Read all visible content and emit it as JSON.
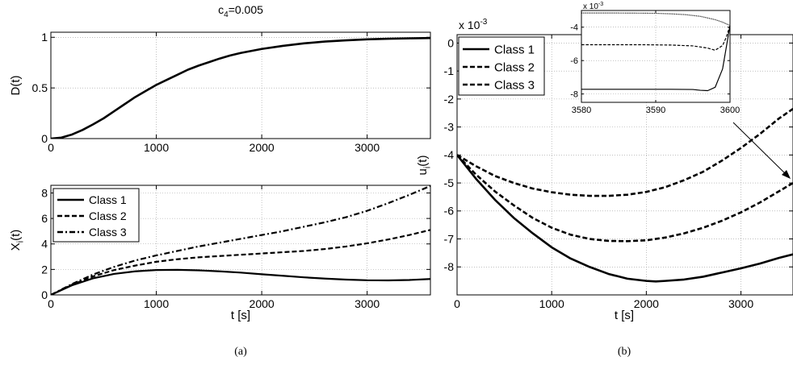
{
  "chart_data": [
    {
      "id": "top-left",
      "type": "line",
      "title_main": "c",
      "title_sub": "4",
      "title_rest": "=0.005",
      "ylabel": "D(t)",
      "xlim": [
        0,
        3600
      ],
      "ylim": [
        0,
        1.05
      ],
      "xticks": [
        0,
        1000,
        2000,
        3000
      ],
      "yticks": [
        0,
        0.5,
        1
      ],
      "ytick_labels": [
        "0",
        "0.5",
        "1"
      ],
      "grid": true,
      "series": [
        {
          "style": "solid",
          "x": [
            0,
            100,
            200,
            300,
            400,
            500,
            600,
            700,
            800,
            900,
            1000,
            1100,
            1200,
            1300,
            1400,
            1500,
            1600,
            1700,
            1800,
            1900,
            2000,
            2200,
            2400,
            2600,
            2800,
            3000,
            3200,
            3400,
            3600
          ],
          "y": [
            0,
            0.01,
            0.04,
            0.085,
            0.14,
            0.2,
            0.27,
            0.34,
            0.41,
            0.47,
            0.53,
            0.58,
            0.63,
            0.68,
            0.72,
            0.755,
            0.79,
            0.82,
            0.845,
            0.865,
            0.885,
            0.915,
            0.94,
            0.958,
            0.97,
            0.98,
            0.986,
            0.99,
            0.993
          ]
        }
      ]
    },
    {
      "id": "bottom-left",
      "type": "line",
      "ylabel_main": "X",
      "ylabel_sub": "i",
      "ylabel_rest": "(t)",
      "xlabel": "t [s]",
      "xlim": [
        0,
        3600
      ],
      "ylim": [
        0,
        8.6
      ],
      "xticks": [
        0,
        1000,
        2000,
        3000
      ],
      "yticks": [
        0,
        2,
        4,
        6,
        8
      ],
      "grid": true,
      "legend": "top-left",
      "series": [
        {
          "name": "Class 1",
          "style": "solid",
          "x": [
            0,
            200,
            400,
            600,
            800,
            1000,
            1200,
            1400,
            1600,
            1800,
            2000,
            2200,
            2400,
            2600,
            2800,
            3000,
            3200,
            3400,
            3600
          ],
          "y": [
            0,
            0.75,
            1.3,
            1.65,
            1.85,
            1.95,
            1.97,
            1.93,
            1.85,
            1.75,
            1.62,
            1.5,
            1.38,
            1.28,
            1.2,
            1.15,
            1.14,
            1.17,
            1.25
          ]
        },
        {
          "name": "Class 2",
          "style": "dashed",
          "x": [
            0,
            200,
            400,
            600,
            800,
            1000,
            1200,
            1400,
            1600,
            1800,
            2000,
            2200,
            2400,
            2600,
            2800,
            3000,
            3200,
            3400,
            3600
          ],
          "y": [
            0,
            0.8,
            1.45,
            1.95,
            2.3,
            2.6,
            2.8,
            2.95,
            3.05,
            3.15,
            3.25,
            3.35,
            3.45,
            3.6,
            3.8,
            4.05,
            4.35,
            4.7,
            5.1
          ]
        },
        {
          "name": "Class 3",
          "style": "dashdot",
          "x": [
            0,
            200,
            400,
            600,
            800,
            1000,
            1200,
            1400,
            1600,
            1800,
            2000,
            2200,
            2400,
            2600,
            2800,
            3000,
            3200,
            3400,
            3600
          ],
          "y": [
            0,
            0.85,
            1.6,
            2.2,
            2.7,
            3.1,
            3.45,
            3.8,
            4.1,
            4.4,
            4.7,
            5.0,
            5.35,
            5.7,
            6.1,
            6.6,
            7.2,
            7.85,
            8.55
          ]
        }
      ]
    },
    {
      "id": "right",
      "type": "line",
      "ylabel_main": "u",
      "ylabel_sub": "i",
      "ylabel_rest": "(t)",
      "xlabel": "t [s]",
      "scale_label": "x 10",
      "scale_exp": "-3",
      "xlim": [
        0,
        3550
      ],
      "ylim": [
        -9,
        0.3
      ],
      "xticks": [
        0,
        1000,
        2000,
        3000
      ],
      "yticks": [
        0,
        -1,
        -2,
        -3,
        -4,
        -5,
        -6,
        -7,
        -8
      ],
      "grid": true,
      "legend": "top-left",
      "series": [
        {
          "name": "Class 1",
          "style": "solid",
          "x": [
            0,
            200,
            400,
            600,
            800,
            1000,
            1200,
            1400,
            1600,
            1800,
            2000,
            2100,
            2200,
            2400,
            2600,
            2800,
            3000,
            3200,
            3400,
            3550
          ],
          "y": [
            -4.0,
            -4.85,
            -5.6,
            -6.25,
            -6.8,
            -7.3,
            -7.7,
            -8.0,
            -8.25,
            -8.42,
            -8.5,
            -8.52,
            -8.5,
            -8.45,
            -8.35,
            -8.2,
            -8.05,
            -7.88,
            -7.68,
            -7.55
          ]
        },
        {
          "name": "Class 2",
          "style": "dashed",
          "x": [
            0,
            200,
            400,
            600,
            800,
            1000,
            1200,
            1400,
            1600,
            1800,
            2000,
            2200,
            2400,
            2600,
            2800,
            3000,
            3200,
            3400,
            3550
          ],
          "y": [
            -4.0,
            -4.7,
            -5.3,
            -5.8,
            -6.25,
            -6.6,
            -6.85,
            -7.0,
            -7.07,
            -7.08,
            -7.05,
            -6.95,
            -6.8,
            -6.6,
            -6.35,
            -6.05,
            -5.7,
            -5.3,
            -5.0
          ]
        },
        {
          "name": "Class 3",
          "style": "dashed",
          "x": [
            0,
            200,
            400,
            600,
            800,
            1000,
            1200,
            1400,
            1600,
            1800,
            2000,
            2200,
            2400,
            2600,
            2800,
            3000,
            3200,
            3400,
            3550
          ],
          "y": [
            -4.0,
            -4.4,
            -4.75,
            -5.0,
            -5.2,
            -5.33,
            -5.42,
            -5.46,
            -5.46,
            -5.42,
            -5.32,
            -5.15,
            -4.9,
            -4.6,
            -4.2,
            -3.75,
            -3.25,
            -2.7,
            -2.35
          ]
        }
      ]
    },
    {
      "id": "inset",
      "type": "line",
      "scale_label": "x 10",
      "scale_exp": "-3",
      "xlim": [
        3580,
        3600
      ],
      "ylim": [
        -8.5,
        -3.0
      ],
      "xticks": [
        3580,
        3590,
        3600
      ],
      "yticks": [
        -4,
        -6,
        -8
      ],
      "grid": true,
      "series": [
        {
          "name": "Class 1",
          "style": "solid",
          "x": [
            3580,
            3584,
            3588,
            3592,
            3595,
            3596,
            3597,
            3598,
            3599,
            3599.5,
            3600
          ],
          "y": [
            -7.72,
            -7.72,
            -7.72,
            -7.72,
            -7.73,
            -7.78,
            -7.8,
            -7.6,
            -6.5,
            -5.2,
            -3.9
          ]
        },
        {
          "name": "Class 2",
          "style": "dashed",
          "x": [
            3580,
            3584,
            3588,
            3592,
            3595,
            3597,
            3598,
            3599,
            3599.5,
            3600
          ],
          "y": [
            -5.05,
            -5.05,
            -5.05,
            -5.07,
            -5.12,
            -5.25,
            -5.38,
            -5.1,
            -4.6,
            -3.9
          ]
        },
        {
          "name": "Class 3",
          "style": "dotted",
          "x": [
            3580,
            3584,
            3588,
            3590,
            3592,
            3594,
            3596,
            3597,
            3598,
            3599,
            3600
          ],
          "y": [
            -3.15,
            -3.15,
            -3.16,
            -3.17,
            -3.2,
            -3.25,
            -3.35,
            -3.45,
            -3.55,
            -3.7,
            -3.9
          ]
        }
      ]
    }
  ],
  "captions": {
    "a": "(a)",
    "b": "(b)"
  }
}
